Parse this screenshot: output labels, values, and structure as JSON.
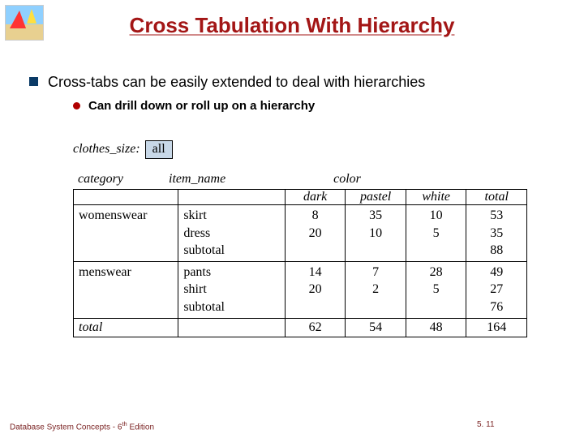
{
  "title": "Cross Tabulation With Hierarchy",
  "bullets": {
    "main": "Cross-tabs can be easily extended to deal with hierarchies",
    "sub": "Can drill down or roll up on a hierarchy"
  },
  "figure": {
    "size_label": "clothes_size:",
    "size_value": "all",
    "headers": {
      "category": "category",
      "item_name": "item_name",
      "color": "color"
    },
    "col_headers": {
      "dark": "dark",
      "pastel": "pastel",
      "white": "white",
      "total": "total"
    },
    "rows": [
      {
        "category": "womenswear",
        "items": [
          {
            "name": "skirt",
            "dark": "8",
            "pastel": "35",
            "white": "10",
            "total": "53"
          },
          {
            "name": "dress",
            "dark": "20",
            "pastel": "10",
            "white": "5",
            "total": "35"
          },
          {
            "name": "subtotal",
            "dark": "",
            "pastel": "",
            "white": "",
            "total": "88"
          }
        ]
      },
      {
        "category": "menswear",
        "items": [
          {
            "name": "pants",
            "dark": "14",
            "pastel": "7",
            "white": "28",
            "total": "49"
          },
          {
            "name": "shirt",
            "dark": "20",
            "pastel": "2",
            "white": "5",
            "total": "27"
          },
          {
            "name": "subtotal",
            "dark": "",
            "pastel": "",
            "white": "",
            "total": "76"
          }
        ]
      }
    ],
    "total_row": {
      "label": "total",
      "dark": "62",
      "pastel": "54",
      "white": "48",
      "total": "164"
    }
  },
  "footer": {
    "left": "Database System Concepts - 6",
    "left_sup": "th",
    "left_tail": " Edition",
    "center": "5. 11"
  },
  "colors": {
    "title": "#a31616",
    "square_bullet": "#0a3a66",
    "round_bullet": "#b00000",
    "box_bg": "#c8d8e8",
    "footer": "#7a2222"
  }
}
